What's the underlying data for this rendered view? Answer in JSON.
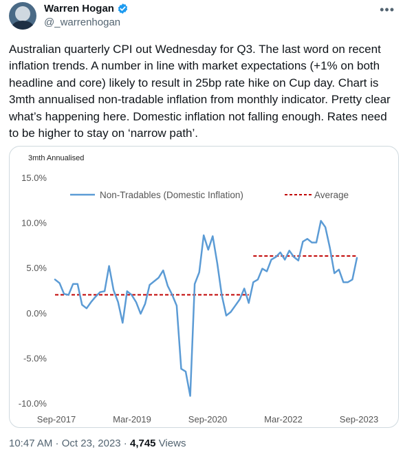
{
  "author": {
    "name": "Warren Hogan",
    "handle": "@_warrenhogan"
  },
  "tweet": {
    "text": "Australian quarterly CPI out Wednesday for Q3. The last word on recent inflation trends. A number in line with market expectations (+1% on both headline and core) likely to result in 25bp rate hike on Cup day. Chart is 3mth annualised non-tradable inflation from monthly indicator. Pretty clear what’s happening here. Domestic inflation not falling enough. Rates need to be higher to stay on ‘narrow path’."
  },
  "meta": {
    "time": "10:47 AM",
    "sep": " · ",
    "date": "Oct 23, 2023",
    "sep2": " · ",
    "views_count": "4,745",
    "views_label": " Views"
  },
  "icons": {
    "verified": "verified-badge-icon",
    "more": "more-options-icon"
  },
  "colors": {
    "line": "#5b9bd5",
    "average": "#c00000",
    "verified": "#1d9bf0"
  },
  "chart_data": {
    "type": "line",
    "title": "3mth Annualised",
    "yticks": [
      "15.0%",
      "10.0%",
      "5.0%",
      "0.0%",
      "-5.0%",
      "-10.0%"
    ],
    "ylim": [
      -10,
      15
    ],
    "xticks": [
      "Sep-2017",
      "Mar-2019",
      "Sep-2020",
      "Mar-2022",
      "Sep-2023"
    ],
    "legend": {
      "placement": "top",
      "line_label": "Non-Tradables (Domestic Inflation)",
      "avg_label": "Average"
    },
    "series": [
      {
        "name": "Non-Tradables (Domestic Inflation)",
        "values": [
          3.7,
          3.3,
          2.1,
          2.0,
          3.2,
          3.2,
          0.9,
          0.5,
          1.2,
          1.8,
          2.3,
          2.4,
          5.2,
          2.5,
          1.2,
          -1.1,
          2.4,
          2.0,
          1.2,
          -0.1,
          1.0,
          3.1,
          3.5,
          3.9,
          4.7,
          3.0,
          2.0,
          0.8,
          -6.2,
          -6.5,
          -9.2,
          3.2,
          4.5,
          8.6,
          7.0,
          8.5,
          5.5,
          2.0,
          -0.3,
          0.1,
          0.8,
          1.5,
          2.7,
          1.1,
          3.4,
          3.7,
          4.9,
          4.6,
          5.9,
          6.2,
          6.7,
          5.9,
          6.9,
          6.2,
          5.8,
          7.9,
          8.2,
          7.8,
          7.8,
          10.2,
          9.5,
          7.2,
          4.4,
          4.8,
          3.4,
          3.4,
          3.7,
          6.1
        ]
      },
      {
        "name": "Average",
        "segments": [
          {
            "from_index": 0,
            "to_index": 43,
            "value": 2.0
          },
          {
            "from_index": 44,
            "to_index": 67,
            "value": 6.3
          }
        ]
      }
    ]
  }
}
